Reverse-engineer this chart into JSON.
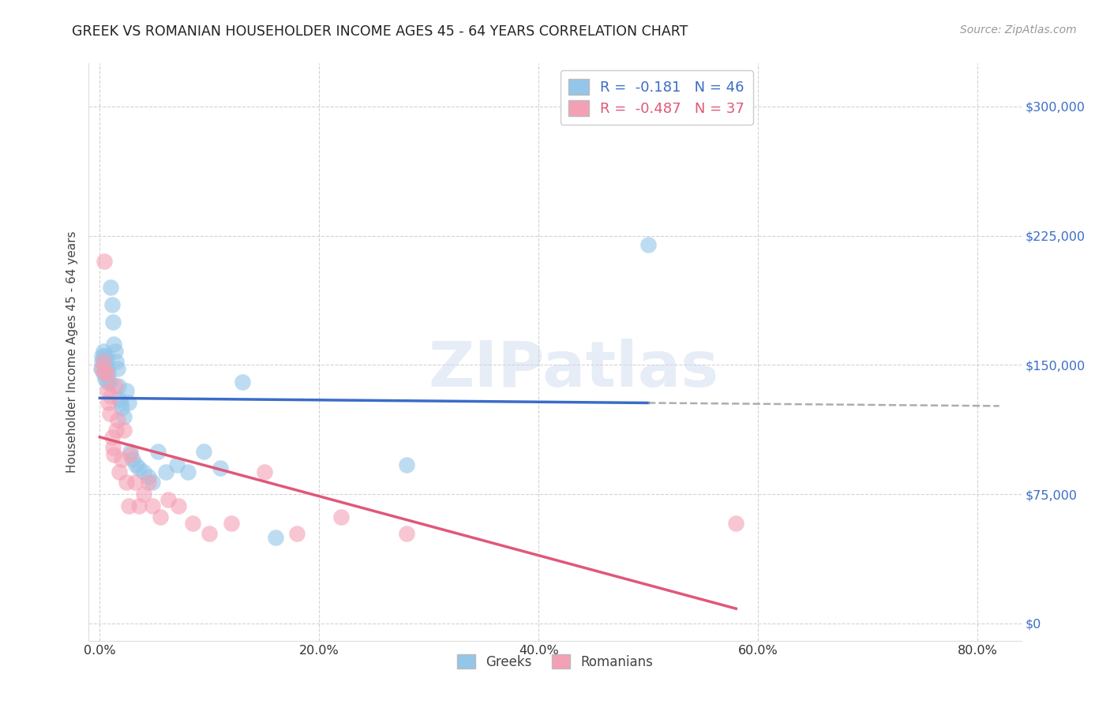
{
  "title": "GREEK VS ROMANIAN HOUSEHOLDER INCOME AGES 45 - 64 YEARS CORRELATION CHART",
  "source": "Source: ZipAtlas.com",
  "ylabel": "Householder Income Ages 45 - 64 years",
  "ytick_labels": [
    "$0",
    "$75,000",
    "$150,000",
    "$225,000",
    "$300,000"
  ],
  "ytick_vals": [
    0,
    75000,
    150000,
    225000,
    300000
  ],
  "xtick_vals": [
    0.0,
    0.2,
    0.4,
    0.6,
    0.8
  ],
  "xlim": [
    -0.01,
    0.84
  ],
  "ylim": [
    -10000,
    325000
  ],
  "greek_R": -0.181,
  "greek_N": 46,
  "romanian_R": -0.487,
  "romanian_N": 37,
  "greek_color": "#93C6E8",
  "romanian_color": "#F4A0B4",
  "greek_line_color": "#3A6CC8",
  "romanian_line_color": "#E05878",
  "greek_x": [
    0.001,
    0.002,
    0.002,
    0.003,
    0.003,
    0.004,
    0.004,
    0.005,
    0.005,
    0.006,
    0.006,
    0.007,
    0.007,
    0.008,
    0.009,
    0.01,
    0.011,
    0.012,
    0.013,
    0.014,
    0.015,
    0.016,
    0.017,
    0.018,
    0.019,
    0.02,
    0.022,
    0.024,
    0.026,
    0.028,
    0.03,
    0.033,
    0.036,
    0.04,
    0.044,
    0.048,
    0.053,
    0.06,
    0.07,
    0.08,
    0.095,
    0.11,
    0.13,
    0.16,
    0.28,
    0.5
  ],
  "greek_y": [
    148000,
    155000,
    152000,
    158000,
    145000,
    150000,
    155000,
    148000,
    142000,
    152000,
    155000,
    148000,
    140000,
    145000,
    140000,
    195000,
    185000,
    175000,
    162000,
    158000,
    152000,
    148000,
    138000,
    130000,
    128000,
    125000,
    120000,
    135000,
    128000,
    100000,
    95000,
    92000,
    90000,
    88000,
    85000,
    82000,
    100000,
    88000,
    92000,
    88000,
    100000,
    90000,
    140000,
    50000,
    92000,
    220000
  ],
  "romanian_x": [
    0.002,
    0.003,
    0.004,
    0.005,
    0.006,
    0.007,
    0.008,
    0.009,
    0.01,
    0.011,
    0.012,
    0.013,
    0.014,
    0.015,
    0.016,
    0.018,
    0.02,
    0.022,
    0.024,
    0.026,
    0.028,
    0.032,
    0.036,
    0.04,
    0.044,
    0.048,
    0.055,
    0.062,
    0.072,
    0.085,
    0.1,
    0.12,
    0.15,
    0.18,
    0.22,
    0.28,
    0.58
  ],
  "romanian_y": [
    148000,
    152000,
    210000,
    145000,
    145000,
    135000,
    128000,
    122000,
    132000,
    108000,
    102000,
    98000,
    138000,
    112000,
    118000,
    88000,
    95000,
    112000,
    82000,
    68000,
    98000,
    82000,
    68000,
    75000,
    82000,
    68000,
    62000,
    72000,
    68000,
    58000,
    52000,
    58000,
    88000,
    52000,
    62000,
    52000,
    58000
  ]
}
